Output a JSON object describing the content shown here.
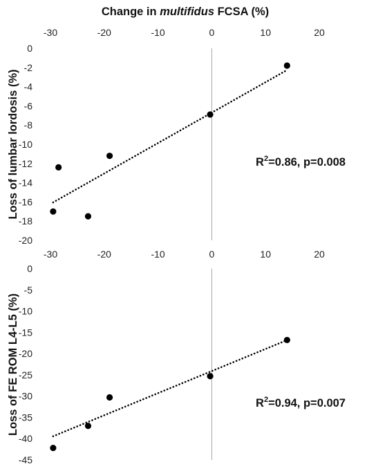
{
  "x_axis_title": {
    "prefix": "Change in ",
    "italic": "multifidus",
    "suffix": " FCSA (%)"
  },
  "chart_data": [
    {
      "type": "scatter",
      "title": "",
      "xlabel": "Change in multifidus FCSA (%)",
      "ylabel": "Loss of lumbar lordosis (%)",
      "xlim": [
        -30,
        20
      ],
      "ylim": [
        -20,
        0
      ],
      "x_ticks": [
        "-30",
        "-20",
        "-10",
        "0",
        "10",
        "20"
      ],
      "y_ticks": [
        "0",
        "-2",
        "-4",
        "-6",
        "-8",
        "-10",
        "-12",
        "-14",
        "-16",
        "-18",
        "-20"
      ],
      "x_tick_values": [
        -30,
        -20,
        -10,
        0,
        10,
        20
      ],
      "y_tick_values": [
        0,
        -2,
        -4,
        -6,
        -8,
        -10,
        -12,
        -14,
        -16,
        -18,
        -20
      ],
      "x_tick_position": "top",
      "points": [
        {
          "x": -28.5,
          "y": -12.4
        },
        {
          "x": -29.5,
          "y": -17.0
        },
        {
          "x": -23.0,
          "y": -17.5
        },
        {
          "x": -19.0,
          "y": -11.2
        },
        {
          "x": -0.3,
          "y": -6.9
        },
        {
          "x": 14.0,
          "y": -1.8
        }
      ],
      "trendline": {
        "style": "dotted",
        "x_start": -29.5,
        "x_end": 14.0,
        "slope": 0.317,
        "intercept": -6.7
      },
      "annotation": {
        "r2_prefix": "R",
        "r2_superscript": "2",
        "text": "=0.86, p=0.008"
      },
      "marker_color": "#000000",
      "grid": false
    },
    {
      "type": "scatter",
      "title": "",
      "xlabel": "Change in multifidus FCSA (%)",
      "ylabel": "Loss of FE ROM L4-L5 (%)",
      "xlim": [
        -30,
        20
      ],
      "ylim": [
        -45,
        0
      ],
      "x_ticks": [
        "-30",
        "-20",
        "-10",
        "0",
        "10",
        "20"
      ],
      "y_ticks": [
        "0",
        "-5",
        "-10",
        "-15",
        "-20",
        "-25",
        "-30",
        "-35",
        "-40",
        "-45"
      ],
      "x_tick_values": [
        -30,
        -20,
        -10,
        0,
        10,
        20
      ],
      "y_tick_values": [
        0,
        -5,
        -10,
        -15,
        -20,
        -25,
        -30,
        -35,
        -40,
        -45
      ],
      "x_tick_position": "top",
      "points": [
        {
          "x": -29.5,
          "y": -42.2
        },
        {
          "x": -23.0,
          "y": -37.0
        },
        {
          "x": -19.0,
          "y": -30.3
        },
        {
          "x": -0.3,
          "y": -25.3
        },
        {
          "x": 14.0,
          "y": -16.8
        }
      ],
      "trendline": {
        "style": "dotted",
        "x_start": -29.5,
        "x_end": 14.0,
        "slope": 0.52,
        "intercept": -24.1
      },
      "annotation": {
        "r2_prefix": "R",
        "r2_superscript": "2",
        "text": "=0.94, p=0.007"
      },
      "marker_color": "#000000",
      "grid": false
    }
  ]
}
